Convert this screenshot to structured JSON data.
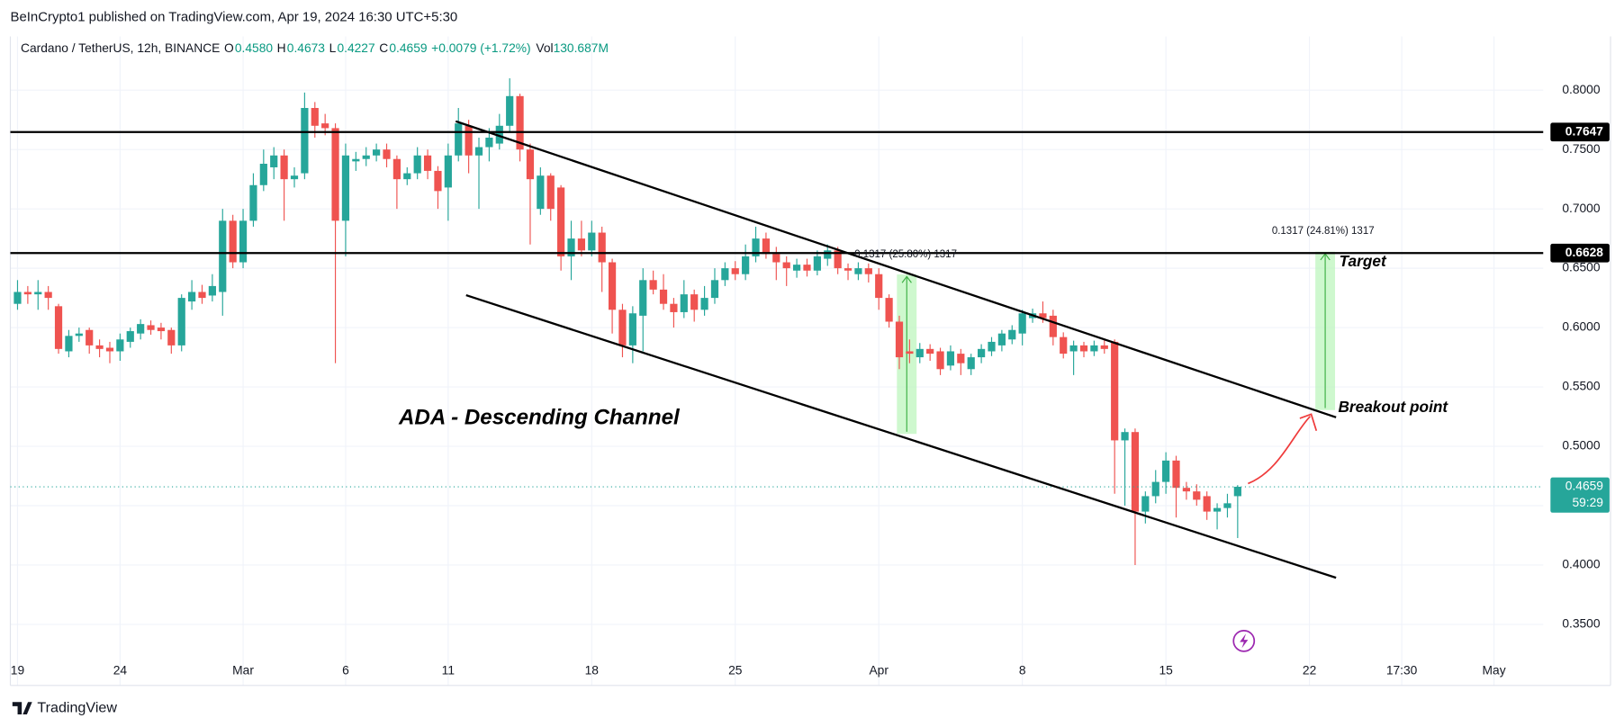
{
  "header": {
    "published": "BeInCrypto1 published on TradingView.com, Apr 19, 2024 16:30 UTC+5:30",
    "symbol": "Cardano / TetherUS, 12h, BINANCE",
    "fields": [
      {
        "label": "O",
        "value": "0.4580"
      },
      {
        "label": "H",
        "value": "0.4673"
      },
      {
        "label": "L",
        "value": "0.4227"
      },
      {
        "label": "C",
        "value": "0.4659"
      }
    ],
    "change": "+0.0079 (+1.72%)",
    "volume_label": "Vol",
    "volume": "130.687M"
  },
  "chart_data": {
    "type": "candlestick",
    "colors": {
      "up": "#26a69a",
      "down": "#ef5350"
    },
    "open": [
      0.62,
      0.63,
      0.628,
      0.63,
      0.618,
      0.58,
      0.593,
      0.598,
      0.585,
      0.583,
      0.58,
      0.588,
      0.595,
      0.602,
      0.6,
      0.598,
      0.585,
      0.622,
      0.63,
      0.627,
      0.63,
      0.69,
      0.655,
      0.69,
      0.72,
      0.735,
      0.745,
      0.725,
      0.73,
      0.785,
      0.772,
      0.768,
      0.69,
      0.74,
      0.742,
      0.745,
      0.75,
      0.742,
      0.725,
      0.73,
      0.745,
      0.732,
      0.718,
      0.745,
      0.77,
      0.745,
      0.752,
      0.755,
      0.77,
      0.795,
      0.75,
      0.7,
      0.728,
      0.718,
      0.66,
      0.675,
      0.665,
      0.68,
      0.655,
      0.615,
      0.585,
      0.61,
      0.64,
      0.632,
      0.62,
      0.613,
      0.628,
      0.615,
      0.625,
      0.64,
      0.65,
      0.645,
      0.66,
      0.675,
      0.662,
      0.655,
      0.648,
      0.653,
      0.648,
      0.658,
      0.665,
      0.65,
      0.645,
      0.65,
      0.645,
      0.625,
      0.605,
      0.58,
      0.575,
      0.582,
      0.58,
      0.568,
      0.578,
      0.565,
      0.575,
      0.58,
      0.585,
      0.59,
      0.595,
      0.608,
      0.612,
      0.61,
      0.592,
      0.58,
      0.585,
      0.58,
      0.585,
      0.588,
      0.505,
      0.512,
      0.445,
      0.458,
      0.47,
      0.488,
      0.465,
      0.462,
      0.458,
      0.445,
      0.448,
      0.458
    ],
    "high": [
      0.64,
      0.635,
      0.64,
      0.635,
      0.62,
      0.598,
      0.6,
      0.6,
      0.59,
      0.588,
      0.595,
      0.6,
      0.607,
      0.606,
      0.604,
      0.6,
      0.628,
      0.64,
      0.636,
      0.645,
      0.7,
      0.695,
      0.7,
      0.73,
      0.75,
      0.752,
      0.75,
      0.735,
      0.798,
      0.79,
      0.78,
      0.772,
      0.755,
      0.748,
      0.752,
      0.755,
      0.755,
      0.745,
      0.735,
      0.752,
      0.75,
      0.736,
      0.755,
      0.785,
      0.775,
      0.76,
      0.768,
      0.78,
      0.81,
      0.797,
      0.755,
      0.735,
      0.73,
      0.72,
      0.69,
      0.69,
      0.69,
      0.685,
      0.658,
      0.62,
      0.618,
      0.65,
      0.648,
      0.645,
      0.625,
      0.64,
      0.632,
      0.635,
      0.65,
      0.655,
      0.656,
      0.67,
      0.685,
      0.68,
      0.668,
      0.66,
      0.658,
      0.658,
      0.665,
      0.67,
      0.668,
      0.654,
      0.655,
      0.654,
      0.65,
      0.628,
      0.61,
      0.59,
      0.587,
      0.586,
      0.583,
      0.585,
      0.582,
      0.578,
      0.586,
      0.592,
      0.598,
      0.602,
      0.615,
      0.616,
      0.622,
      0.615,
      0.596,
      0.589,
      0.588,
      0.589,
      0.59,
      0.59,
      0.515,
      0.515,
      0.462,
      0.48,
      0.495,
      0.492,
      0.47,
      0.468,
      0.462,
      0.452,
      0.46,
      0.4673
    ],
    "low": [
      0.615,
      0.62,
      0.615,
      0.615,
      0.578,
      0.575,
      0.588,
      0.578,
      0.575,
      0.57,
      0.572,
      0.583,
      0.59,
      0.594,
      0.59,
      0.578,
      0.58,
      0.615,
      0.62,
      0.622,
      0.61,
      0.65,
      0.65,
      0.685,
      0.715,
      0.725,
      0.69,
      0.718,
      0.725,
      0.76,
      0.762,
      0.57,
      0.66,
      0.732,
      0.736,
      0.74,
      0.735,
      0.7,
      0.72,
      0.725,
      0.725,
      0.7,
      0.69,
      0.74,
      0.73,
      0.7,
      0.74,
      0.75,
      0.765,
      0.74,
      0.67,
      0.695,
      0.69,
      0.648,
      0.64,
      0.66,
      0.66,
      0.63,
      0.595,
      0.575,
      0.57,
      0.58,
      0.628,
      0.615,
      0.6,
      0.608,
      0.605,
      0.61,
      0.62,
      0.635,
      0.64,
      0.64,
      0.655,
      0.658,
      0.64,
      0.635,
      0.642,
      0.643,
      0.644,
      0.652,
      0.645,
      0.64,
      0.64,
      0.638,
      0.615,
      0.6,
      0.565,
      0.57,
      0.57,
      0.572,
      0.56,
      0.564,
      0.56,
      0.56,
      0.57,
      0.576,
      0.58,
      0.586,
      0.585,
      0.604,
      0.604,
      0.585,
      0.574,
      0.56,
      0.575,
      0.576,
      0.578,
      0.46,
      0.45,
      0.4,
      0.435,
      0.452,
      0.46,
      0.44,
      0.455,
      0.45,
      0.438,
      0.43,
      0.44,
      0.4227
    ],
    "close": [
      0.63,
      0.628,
      0.63,
      0.625,
      0.582,
      0.593,
      0.595,
      0.585,
      0.582,
      0.58,
      0.59,
      0.597,
      0.603,
      0.598,
      0.597,
      0.585,
      0.625,
      0.63,
      0.625,
      0.635,
      0.69,
      0.655,
      0.69,
      0.72,
      0.738,
      0.745,
      0.725,
      0.728,
      0.785,
      0.77,
      0.768,
      0.69,
      0.745,
      0.742,
      0.745,
      0.75,
      0.742,
      0.725,
      0.73,
      0.745,
      0.732,
      0.715,
      0.745,
      0.772,
      0.745,
      0.752,
      0.76,
      0.77,
      0.795,
      0.75,
      0.725,
      0.728,
      0.7,
      0.66,
      0.675,
      0.665,
      0.68,
      0.655,
      0.615,
      0.585,
      0.612,
      0.64,
      0.632,
      0.62,
      0.613,
      0.628,
      0.615,
      0.625,
      0.64,
      0.65,
      0.645,
      0.66,
      0.675,
      0.662,
      0.655,
      0.65,
      0.653,
      0.648,
      0.66,
      0.665,
      0.65,
      0.648,
      0.65,
      0.645,
      0.625,
      0.605,
      0.575,
      0.578,
      0.582,
      0.578,
      0.565,
      0.58,
      0.57,
      0.575,
      0.582,
      0.588,
      0.595,
      0.598,
      0.612,
      0.612,
      0.608,
      0.592,
      0.578,
      0.585,
      0.58,
      0.585,
      0.582,
      0.505,
      0.512,
      0.445,
      0.458,
      0.47,
      0.488,
      0.465,
      0.462,
      0.455,
      0.445,
      0.448,
      0.452,
      0.4659
    ],
    "xlim": [
      -0.7,
      148.8
    ],
    "ylim": [
      0.3221,
      0.8453
    ],
    "xticks": [
      {
        "value": 0,
        "label": "19"
      },
      {
        "value": 10,
        "label": "24"
      },
      {
        "value": 22,
        "label": "Mar"
      },
      {
        "value": 32,
        "label": "6"
      },
      {
        "value": 42,
        "label": "11"
      },
      {
        "value": 56,
        "label": "18"
      },
      {
        "value": 70,
        "label": "25"
      },
      {
        "value": 84,
        "label": "Apr"
      },
      {
        "value": 98,
        "label": "8"
      },
      {
        "value": 112,
        "label": "15"
      },
      {
        "value": 126,
        "label": "22"
      },
      {
        "value": 135,
        "label": "17:30"
      },
      {
        "value": 144,
        "label": "May"
      }
    ],
    "yticks": [
      {
        "value": 0.35,
        "label": "0.3500"
      },
      {
        "value": 0.4,
        "label": "0.4000"
      },
      {
        "value": 0.45,
        "label": "0.4500"
      },
      {
        "value": 0.5,
        "label": "0.5000"
      },
      {
        "value": 0.55,
        "label": "0.5500"
      },
      {
        "value": 0.6,
        "label": "0.6000"
      },
      {
        "value": 0.65,
        "label": "0.6500"
      },
      {
        "value": 0.7,
        "label": "0.7000"
      },
      {
        "value": 0.75,
        "label": "0.7500"
      },
      {
        "value": 0.8,
        "label": "0.8000"
      }
    ],
    "grid": true,
    "levels": [
      {
        "value": 0.7647,
        "label": "0.7647"
      },
      {
        "value": 0.6628,
        "label": "0.6628"
      }
    ],
    "last": {
      "value": 0.4659,
      "label": "0.4659",
      "countdown": "59:29"
    },
    "annotations": {
      "pattern": "ADA - Descending Channel",
      "measure_1": "0.1317 (25.80%) 1317",
      "measure_2": "0.1317 (24.81%) 1317",
      "target": "Target",
      "breakout": "Breakout point"
    }
  },
  "footer": {
    "brand": "TradingView"
  }
}
